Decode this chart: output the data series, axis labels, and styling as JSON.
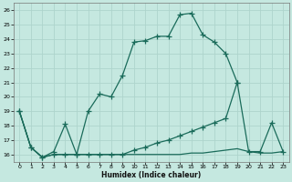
{
  "xlabel": "Humidex (Indice chaleur)",
  "background_color": "#c5e8e0",
  "grid_color": "#aed4cc",
  "line_color": "#1a6b5a",
  "xlim": [
    -0.5,
    23.5
  ],
  "ylim": [
    15.5,
    26.5
  ],
  "xticks": [
    0,
    1,
    2,
    3,
    4,
    5,
    6,
    7,
    8,
    9,
    10,
    11,
    12,
    13,
    14,
    15,
    16,
    17,
    18,
    19,
    20,
    21,
    22,
    23
  ],
  "yticks": [
    16,
    17,
    18,
    19,
    20,
    21,
    22,
    23,
    24,
    25,
    26
  ],
  "line1_x": [
    0,
    1,
    2,
    3,
    4,
    5,
    6,
    7,
    8,
    9,
    10,
    11,
    12,
    13,
    14,
    15,
    16,
    17,
    18,
    19
  ],
  "line1_y": [
    19,
    16.5,
    15.8,
    16.2,
    18.1,
    16.0,
    19.0,
    20.2,
    20.0,
    21.5,
    23.8,
    23.9,
    24.2,
    24.2,
    25.7,
    25.8,
    24.3,
    23.8,
    23.0,
    21.0
  ],
  "line2_x": [
    0,
    1,
    2,
    3,
    4,
    5,
    6,
    7,
    8,
    9,
    10,
    11,
    12,
    13,
    14,
    15,
    16,
    17,
    18,
    19,
    20,
    21,
    22,
    23
  ],
  "line2_y": [
    19,
    16.5,
    15.8,
    16.0,
    16.0,
    16.0,
    16.0,
    16.0,
    16.0,
    16.0,
    16.3,
    16.5,
    16.8,
    17.0,
    17.3,
    17.6,
    17.9,
    18.2,
    18.5,
    21.0,
    16.2,
    16.2,
    18.2,
    16.2
  ],
  "line3_x": [
    0,
    1,
    2,
    3,
    4,
    5,
    6,
    7,
    8,
    9,
    10,
    11,
    12,
    13,
    14,
    15,
    16,
    17,
    18,
    19,
    20,
    21,
    22,
    23
  ],
  "line3_y": [
    19,
    16.5,
    15.8,
    16.0,
    16.0,
    16.0,
    16.0,
    16.0,
    16.0,
    16.0,
    16.0,
    16.0,
    16.0,
    16.0,
    16.0,
    16.1,
    16.1,
    16.2,
    16.3,
    16.4,
    16.2,
    16.1,
    16.1,
    16.2
  ]
}
